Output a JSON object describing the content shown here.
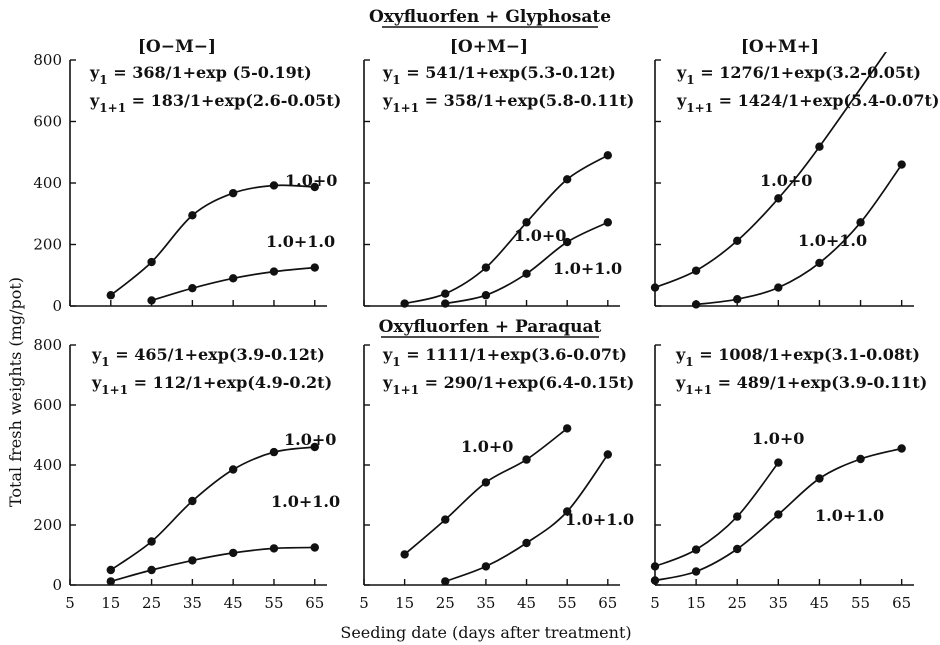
{
  "figure": {
    "group_titles": [
      "Oxyfluorfen + Glyphosate",
      "Oxyfluorfen + Paraquat"
    ],
    "ylabel": "Total fresh weights (mg/pot)",
    "xlabel": "Seeding date (days after treatment)",
    "column_labels": [
      "[O−M−]",
      "[O+M−]",
      "[O+M+]"
    ]
  },
  "chart_data": [
    {
      "type": "line",
      "xlim": [
        5,
        68
      ],
      "ylim": [
        0,
        800
      ],
      "x_ticks": [
        5,
        15,
        25,
        35,
        45,
        55,
        65
      ],
      "y_ticks": [
        0,
        200,
        400,
        600,
        800
      ],
      "equations": [
        {
          "lhs": "y",
          "sub": "1",
          "rhs": "= 368/1+exp (5-0.19t)"
        },
        {
          "lhs": "y",
          "sub": "1+1",
          "rhs": "= 183/1+exp(2.6-0.05t)"
        }
      ],
      "series": [
        {
          "name": "1.0+0",
          "x": [
            15,
            25,
            35,
            45,
            55,
            65
          ],
          "y": [
            35,
            143,
            295,
            367,
            392,
            387
          ]
        },
        {
          "name": "1.0+1.0",
          "x": [
            25,
            35,
            45,
            55,
            65
          ],
          "y": [
            18,
            58,
            90,
            112,
            125
          ]
        }
      ]
    },
    {
      "type": "line",
      "xlim": [
        5,
        68
      ],
      "ylim": [
        0,
        800
      ],
      "x_ticks": [
        5,
        15,
        25,
        35,
        45,
        55,
        65
      ],
      "y_ticks": [
        0,
        200,
        400,
        600,
        800
      ],
      "equations": [
        {
          "lhs": "y",
          "sub": "1",
          "rhs": "= 541/1+exp(5.3-0.12t)"
        },
        {
          "lhs": "y",
          "sub": "1+1",
          "rhs": "= 358/1+exp(5.8-0.11t)"
        }
      ],
      "series": [
        {
          "name": "1.0+0",
          "x": [
            15,
            25,
            35,
            45,
            55,
            65
          ],
          "y": [
            8,
            40,
            125,
            272,
            412,
            490
          ]
        },
        {
          "name": "1.0+1.0",
          "x": [
            25,
            35,
            45,
            55,
            65
          ],
          "y": [
            8,
            35,
            105,
            208,
            272
          ]
        }
      ]
    },
    {
      "type": "line",
      "xlim": [
        5,
        68
      ],
      "ylim": [
        0,
        800
      ],
      "x_ticks": [
        5,
        15,
        25,
        35,
        45,
        55,
        65
      ],
      "y_ticks": [
        0,
        200,
        400,
        600,
        800
      ],
      "equations": [
        {
          "lhs": "y",
          "sub": "1",
          "rhs": "= 1276/1+exp(3.2-0.05t)"
        },
        {
          "lhs": "y",
          "sub": "1+1",
          "rhs": "= 1424/1+exp(5.4-0.07t)"
        }
      ],
      "series": [
        {
          "name": "1.0+0",
          "x": [
            5,
            15,
            25,
            35,
            45,
            65
          ],
          "y": [
            60,
            115,
            212,
            350,
            518,
            900
          ]
        },
        {
          "name": "1.0+1.0",
          "x": [
            15,
            25,
            35,
            45,
            55,
            65
          ],
          "y": [
            5,
            22,
            60,
            140,
            272,
            460
          ]
        }
      ]
    },
    {
      "type": "line",
      "xlim": [
        5,
        68
      ],
      "ylim": [
        0,
        800
      ],
      "x_ticks": [
        5,
        15,
        25,
        35,
        45,
        55,
        65
      ],
      "y_ticks": [
        0,
        200,
        400,
        600,
        800
      ],
      "equations": [
        {
          "lhs": "y",
          "sub": "1",
          "rhs": "= 465/1+exp(3.9-0.12t)"
        },
        {
          "lhs": "y",
          "sub": "1+1",
          "rhs": "= 112/1+exp(4.9-0.2t)"
        }
      ],
      "series": [
        {
          "name": "1.0+0",
          "x": [
            15,
            25,
            35,
            45,
            55,
            65
          ],
          "y": [
            50,
            145,
            280,
            385,
            443,
            460
          ]
        },
        {
          "name": "1.0+1.0",
          "x": [
            15,
            25,
            35,
            45,
            55,
            65
          ],
          "y": [
            12,
            50,
            82,
            107,
            122,
            125
          ]
        }
      ]
    },
    {
      "type": "line",
      "xlim": [
        5,
        68
      ],
      "ylim": [
        0,
        800
      ],
      "x_ticks": [
        5,
        15,
        25,
        35,
        45,
        55,
        65
      ],
      "y_ticks": [
        0,
        200,
        400,
        600,
        800
      ],
      "equations": [
        {
          "lhs": "y",
          "sub": "1",
          "rhs": "= 1111/1+exp(3.6-0.07t)"
        },
        {
          "lhs": "y",
          "sub": "1+1",
          "rhs": "= 290/1+exp(6.4-0.15t)"
        }
      ],
      "series": [
        {
          "name": "1.0+0",
          "x": [
            15,
            25,
            35,
            45,
            55
          ],
          "y": [
            102,
            218,
            342,
            418,
            522
          ]
        },
        {
          "name": "1.0+1.0",
          "x": [
            25,
            35,
            45,
            55,
            65
          ],
          "y": [
            12,
            62,
            140,
            245,
            435
          ]
        }
      ]
    },
    {
      "type": "line",
      "xlim": [
        5,
        68
      ],
      "ylim": [
        0,
        800
      ],
      "x_ticks": [
        5,
        15,
        25,
        35,
        45,
        55,
        65
      ],
      "y_ticks": [
        0,
        200,
        400,
        600,
        800
      ],
      "equations": [
        {
          "lhs": "y",
          "sub": "1",
          "rhs": "= 1008/1+exp(3.1-0.08t)"
        },
        {
          "lhs": "y",
          "sub": "1+1",
          "rhs": "= 489/1+exp(3.9-0.11t)"
        }
      ],
      "series": [
        {
          "name": "1.0+0",
          "x": [
            5,
            15,
            25,
            35
          ],
          "y": [
            62,
            118,
            228,
            408
          ]
        },
        {
          "name": "1.0+1.0",
          "x": [
            5,
            15,
            25,
            35,
            45,
            55,
            65
          ],
          "y": [
            15,
            45,
            120,
            235,
            355,
            420,
            455
          ]
        }
      ]
    }
  ]
}
